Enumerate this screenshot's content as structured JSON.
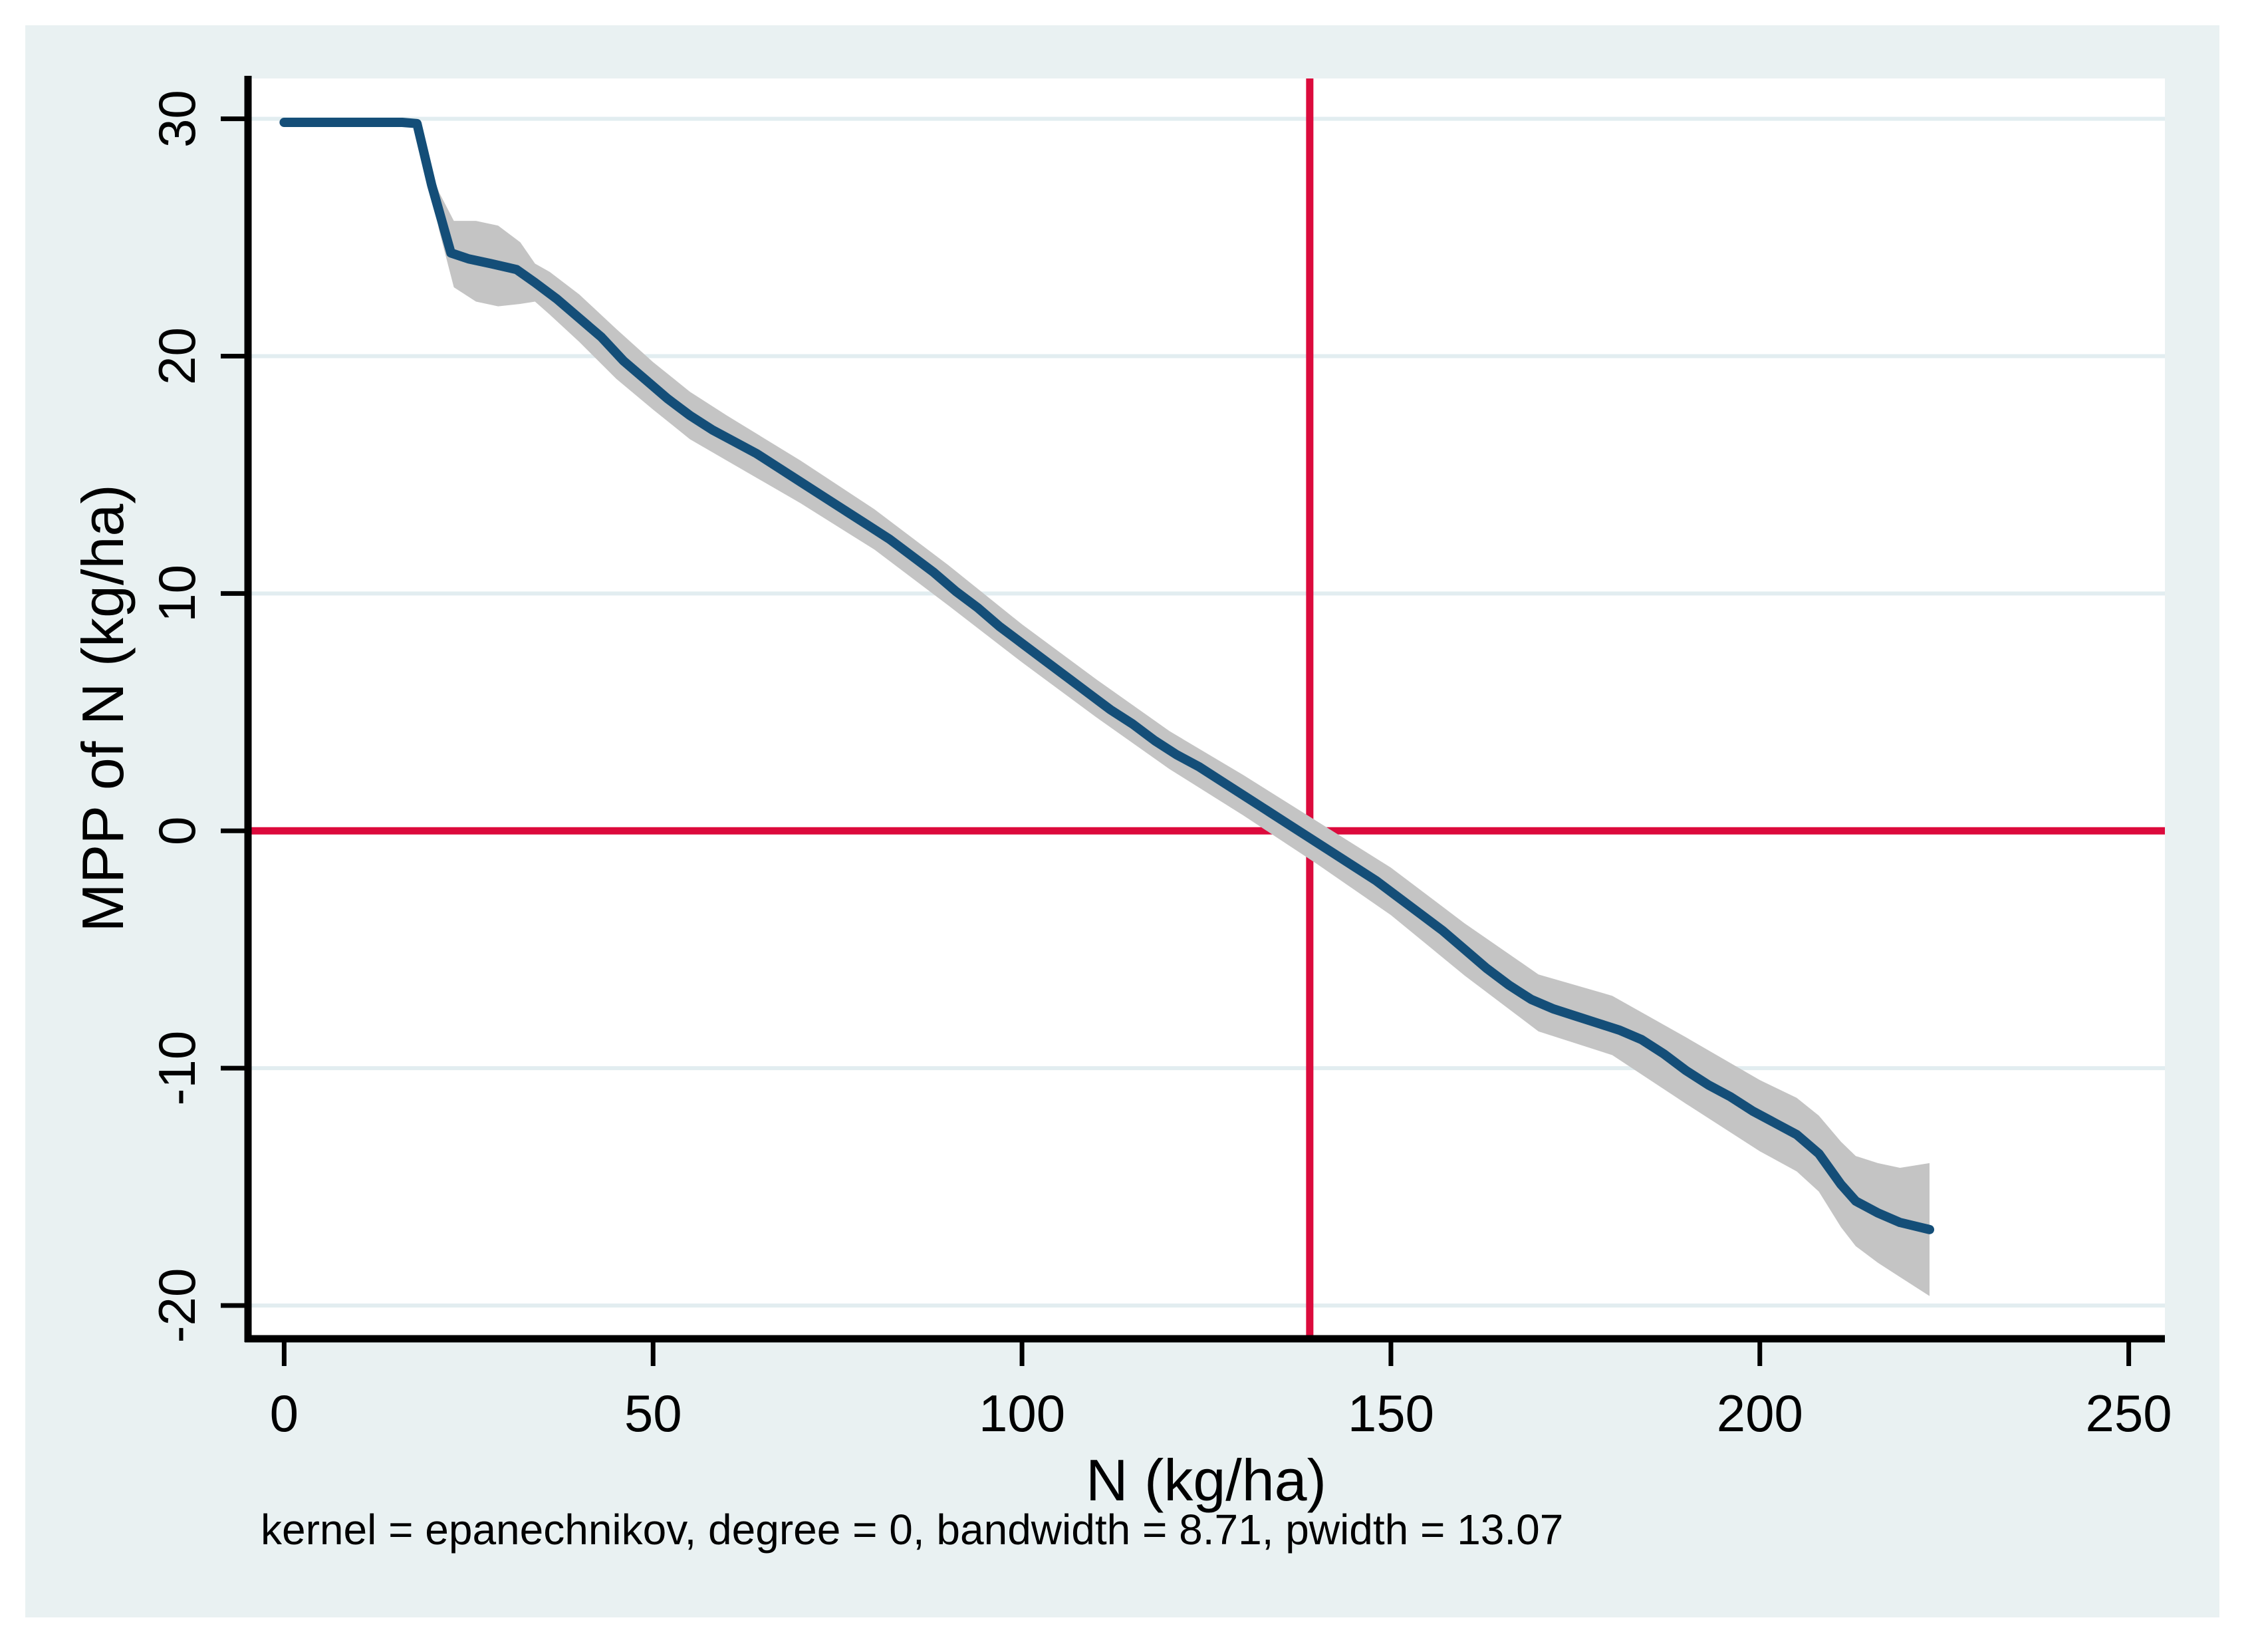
{
  "figure": {
    "note": "kernel = epanechnikov, degree = 0, bandwidth = 8.71, pwidth = 13.07"
  },
  "colors": {
    "figure_background": "#e9f1f2",
    "plot_background": "#ffffff",
    "gridline": "#e2edf0",
    "axis": "#000000",
    "smooth_line": "#144e78",
    "ci_band": "#c4c4c4",
    "reference_line": "#dc0a3c"
  },
  "chart_data": {
    "type": "line",
    "title": "",
    "xlabel": "N (kg/ha)",
    "ylabel": "MPP of N (kg/ha)",
    "xlim": [
      -4.9,
      254.9
    ],
    "ylim": [
      -21.4,
      31.7
    ],
    "x_ticks": [
      0,
      50,
      100,
      150,
      200,
      250
    ],
    "y_ticks": [
      30,
      20,
      10,
      0,
      -10,
      -20
    ],
    "grid": "horizontal-only",
    "legend": "none",
    "reference_lines": {
      "horizontal_y": 0,
      "vertical_x": 139
    },
    "series": [
      {
        "name": "local-polynomial-smooth",
        "x": [
          0,
          4,
          8,
          12,
          16,
          18,
          20,
          22.6,
          25,
          28,
          31.5,
          34,
          37,
          40,
          43,
          46,
          49,
          52,
          55,
          58,
          61,
          64,
          67,
          70,
          73,
          76,
          79,
          82,
          85,
          88,
          91,
          94,
          97,
          100,
          103,
          106,
          109,
          112,
          115,
          118,
          121,
          124,
          127,
          130,
          133,
          136,
          139,
          142,
          145,
          148,
          151,
          154,
          157,
          160,
          163,
          166,
          169,
          172,
          175,
          178,
          181,
          184,
          187,
          190,
          193,
          196,
          199,
          202,
          205,
          208,
          211,
          213,
          216,
          219,
          223
        ],
        "y": [
          29.85,
          29.85,
          29.85,
          29.85,
          29.85,
          29.8,
          27.2,
          24.35,
          24.1,
          23.9,
          23.65,
          23.1,
          22.4,
          21.6,
          20.8,
          19.8,
          19.0,
          18.2,
          17.5,
          16.9,
          16.4,
          15.9,
          15.3,
          14.7,
          14.1,
          13.5,
          12.9,
          12.3,
          11.6,
          10.9,
          10.1,
          9.4,
          8.6,
          7.9,
          7.2,
          6.5,
          5.8,
          5.1,
          4.5,
          3.8,
          3.2,
          2.7,
          2.1,
          1.5,
          0.9,
          0.3,
          -0.3,
          -0.9,
          -1.5,
          -2.1,
          -2.8,
          -3.5,
          -4.2,
          -5.0,
          -5.8,
          -6.5,
          -7.1,
          -7.5,
          -7.8,
          -8.1,
          -8.4,
          -8.8,
          -9.4,
          -10.1,
          -10.7,
          -11.2,
          -11.8,
          -12.3,
          -12.8,
          -13.6,
          -14.9,
          -15.6,
          -16.1,
          -16.5,
          -16.8
        ]
      },
      {
        "name": "confidence-band",
        "x": [
          19.5,
          21,
          23,
          26,
          29,
          32,
          34,
          36,
          40,
          45,
          50,
          55,
          60,
          70,
          80,
          90,
          100,
          110,
          120,
          130,
          140,
          150,
          160,
          170,
          180,
          190,
          200,
          205,
          208,
          211,
          213,
          216,
          219,
          223
        ],
        "upper": [
          28.05,
          26.9,
          25.7,
          25.7,
          25.5,
          24.8,
          23.9,
          23.55,
          22.6,
          21.15,
          19.75,
          18.5,
          17.5,
          15.6,
          13.55,
          11.2,
          8.7,
          6.4,
          4.2,
          2.35,
          0.4,
          -1.55,
          -3.9,
          -6.05,
          -6.95,
          -8.7,
          -10.5,
          -11.25,
          -12.0,
          -13.1,
          -13.7,
          -14.0,
          -14.2,
          -14.0
        ],
        "lower": [
          27.75,
          25.3,
          22.9,
          22.3,
          22.1,
          22.2,
          22.3,
          21.75,
          20.6,
          19.05,
          17.75,
          16.5,
          15.6,
          13.8,
          11.85,
          9.5,
          7.1,
          4.8,
          2.6,
          0.65,
          -1.4,
          -3.55,
          -6.1,
          -8.45,
          -9.45,
          -11.5,
          -13.5,
          -14.35,
          -15.2,
          -16.7,
          -17.5,
          -18.2,
          -18.8,
          -19.6
        ]
      }
    ]
  }
}
